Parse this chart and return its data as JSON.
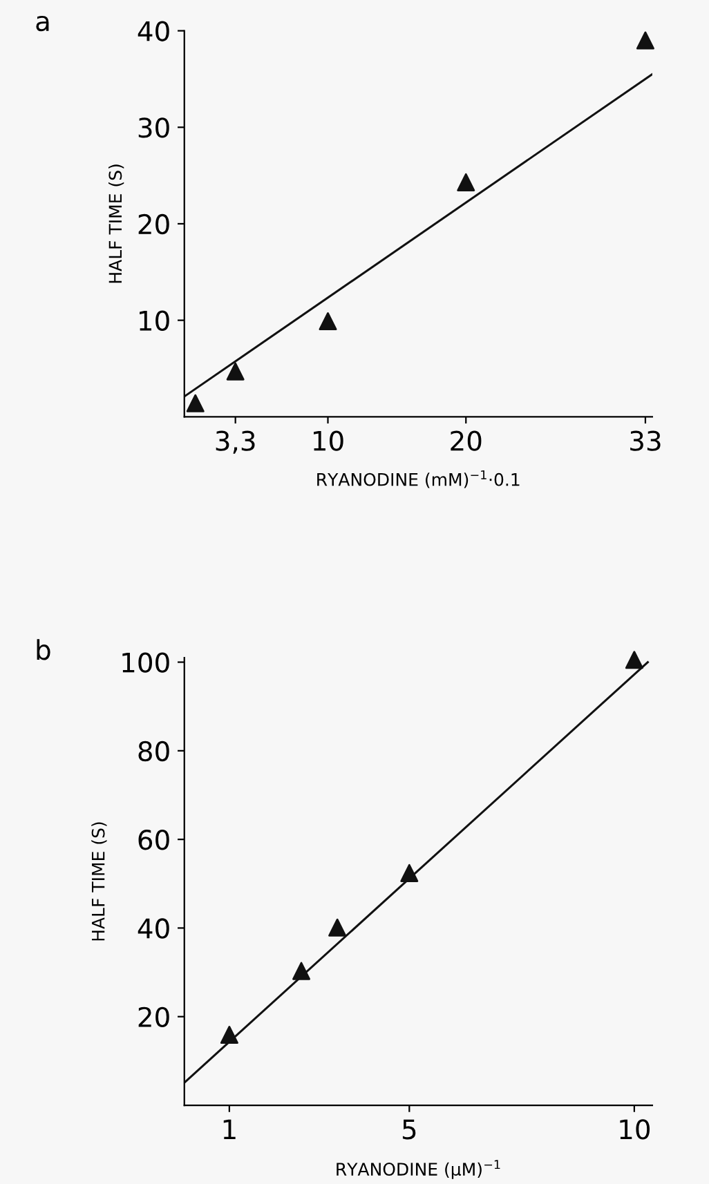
{
  "chart_data": [
    {
      "type": "scatter",
      "title": "a",
      "xlabel": "RYANODINE (mM)$^{−1}$·0.1",
      "ylabel": "HALF TIME (S)",
      "x": [
        0.4,
        3.3,
        10,
        20,
        33
      ],
      "series": [
        {
          "color": "#111111",
          "marker": "triangle",
          "values": [
            1.4,
            4.7,
            9.9,
            24.3,
            39.0
          ]
        },
        {
          "type": "line",
          "color": "#111111",
          "x": [
            -0.4,
            33.5
          ],
          "values": [
            2.1,
            35.5
          ]
        }
      ],
      "xlim": [
        -0.4,
        33.5
      ],
      "xticks": [
        {
          "value": 3.3,
          "label": "3,3"
        },
        10,
        20,
        33
      ],
      "ylim": [
        0,
        40
      ],
      "yticks": [
        10,
        20,
        30,
        40
      ],
      "grid": false,
      "legend": false
    },
    {
      "type": "scatter",
      "title": "b",
      "xlabel": "RYANODINE (µM)$^{−1}$",
      "ylabel": "HALF TIME (S)",
      "x": [
        1,
        2.6,
        3.4,
        5,
        10
      ],
      "series": [
        {
          "color": "#111111",
          "marker": "triangle",
          "values": [
            15.9,
            30.3,
            40.1,
            52.4,
            100.5
          ]
        },
        {
          "type": "line",
          "color": "#111111",
          "x": [
            0,
            10.3
          ],
          "values": [
            5.1,
            100
          ]
        }
      ],
      "xlim": [
        0,
        10.4
      ],
      "xticks": [
        1,
        5,
        10
      ],
      "ylim": [
        0,
        101
      ],
      "yticks": [
        20,
        40,
        60,
        80,
        100
      ],
      "grid": false,
      "legend": false
    }
  ]
}
